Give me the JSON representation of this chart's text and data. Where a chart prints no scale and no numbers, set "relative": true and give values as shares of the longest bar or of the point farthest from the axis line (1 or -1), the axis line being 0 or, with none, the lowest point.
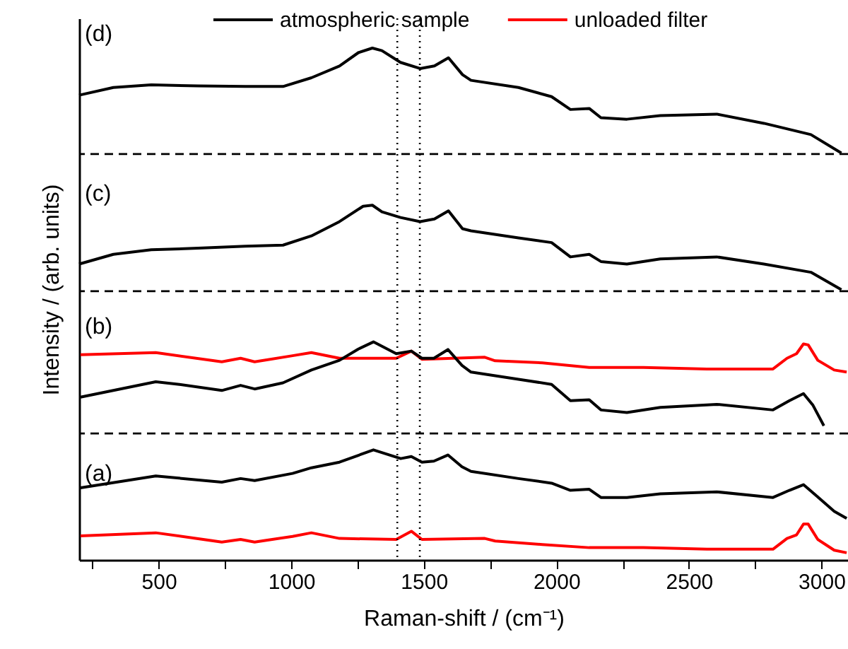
{
  "chart_data": {
    "type": "line",
    "relative": true,
    "xlabel": "Raman-shift / (cm⁻¹)",
    "ylabel": "Intensity / (arb. units)",
    "xlim": [
      200,
      3100
    ],
    "xticks": [
      {
        "value": 250,
        "label": null
      },
      500,
      {
        "value": 750,
        "label": null
      },
      1000,
      {
        "value": 1250,
        "label": null
      },
      1500,
      {
        "value": 1750,
        "label": null
      },
      2000,
      {
        "value": 2250,
        "label": null
      },
      2500,
      {
        "value": 2750,
        "label": null
      },
      3000
    ],
    "legend": "top",
    "grid": false,
    "marker": "none",
    "line_style": "solid",
    "annotations": [
      "(d)",
      "(c)",
      "(b)",
      "(a)"
    ],
    "ref_lines": [
      {
        "axis": "y",
        "value": 0.793,
        "color": "#000000",
        "line_style": "dashed"
      },
      {
        "axis": "y",
        "value": 0.525,
        "color": "#000000",
        "line_style": "dashed"
      },
      {
        "axis": "y",
        "value": 0.247,
        "color": "#000000",
        "line_style": "dashed"
      },
      {
        "axis": "x",
        "value": 1400,
        "color": "#000000",
        "line_style": "dotted"
      },
      {
        "axis": "x",
        "value": 1485,
        "color": "#000000",
        "line_style": "dotted"
      }
    ],
    "series": [
      {
        "name": "atmospheric sample",
        "color": "#000000",
        "x": [
          200,
          329,
          472,
          649,
          827,
          969,
          1076,
          1182,
          1253,
          1306,
          1342,
          1412,
          1486,
          1540,
          1593,
          1646,
          1678,
          1857,
          1982,
          2053,
          2124,
          2168,
          2266,
          2392,
          2605,
          2783,
          2960,
          3075
        ],
        "values": [
          0.908,
          0.923,
          0.928,
          0.926,
          0.925,
          0.925,
          0.942,
          0.965,
          0.991,
          1.0,
          0.995,
          0.972,
          0.96,
          0.965,
          0.981,
          0.948,
          0.937,
          0.923,
          0.905,
          0.88,
          0.882,
          0.864,
          0.861,
          0.868,
          0.871,
          0.853,
          0.831,
          0.795
        ]
      },
      {
        "color": "#000000",
        "x": [
          200,
          329,
          472,
          649,
          827,
          969,
          1076,
          1182,
          1271,
          1306,
          1342,
          1412,
          1486,
          1540,
          1593,
          1646,
          1678,
          1857,
          1982,
          2053,
          2124,
          2168,
          2266,
          2392,
          2605,
          2783,
          2960,
          3075
        ],
        "values": [
          0.578,
          0.597,
          0.606,
          0.609,
          0.613,
          0.615,
          0.633,
          0.661,
          0.691,
          0.693,
          0.68,
          0.669,
          0.661,
          0.666,
          0.682,
          0.647,
          0.643,
          0.629,
          0.62,
          0.592,
          0.597,
          0.583,
          0.578,
          0.588,
          0.592,
          0.578,
          0.562,
          0.528
        ]
      },
      {
        "name": "unloaded filter",
        "color": "#ff0000",
        "x": [
          205,
          489,
          738,
          809,
          862,
          1005,
          1076,
          1182,
          1396,
          1453,
          1493,
          1730,
          1769,
          1947,
          2124,
          2328,
          2568,
          2817,
          2870,
          2906,
          2932,
          2950,
          2986,
          3048,
          3095
        ],
        "values": [
          0.401,
          0.405,
          0.387,
          0.394,
          0.387,
          0.399,
          0.405,
          0.394,
          0.394,
          0.408,
          0.392,
          0.396,
          0.389,
          0.385,
          0.376,
          0.376,
          0.373,
          0.373,
          0.394,
          0.403,
          0.422,
          0.42,
          0.39,
          0.371,
          0.367
        ]
      },
      {
        "color": "#000000",
        "x": [
          205,
          489,
          578,
          738,
          809,
          862,
          969,
          1076,
          1182,
          1253,
          1310,
          1396,
          1453,
          1493,
          1538,
          1591,
          1644,
          1678,
          1857,
          1982,
          2053,
          2124,
          2168,
          2266,
          2392,
          2605,
          2817,
          2879,
          2932,
          2968,
          3009
        ],
        "values": [
          0.318,
          0.348,
          0.343,
          0.331,
          0.341,
          0.334,
          0.346,
          0.371,
          0.39,
          0.412,
          0.426,
          0.403,
          0.408,
          0.394,
          0.394,
          0.411,
          0.38,
          0.367,
          0.353,
          0.343,
          0.311,
          0.313,
          0.293,
          0.288,
          0.298,
          0.304,
          0.293,
          0.311,
          0.325,
          0.302,
          0.262
        ]
      },
      {
        "color": "#000000",
        "x": [
          205,
          489,
          738,
          809,
          862,
          1005,
          1076,
          1182,
          1310,
          1413,
          1453,
          1493,
          1538,
          1591,
          1644,
          1678,
          1857,
          1982,
          2053,
          2124,
          2168,
          2266,
          2392,
          2605,
          2817,
          2879,
          2932,
          2977,
          3048,
          3095
        ],
        "values": [
          0.141,
          0.164,
          0.152,
          0.159,
          0.155,
          0.169,
          0.18,
          0.191,
          0.215,
          0.198,
          0.202,
          0.191,
          0.193,
          0.205,
          0.182,
          0.173,
          0.159,
          0.15,
          0.136,
          0.138,
          0.122,
          0.122,
          0.129,
          0.133,
          0.122,
          0.136,
          0.147,
          0.127,
          0.095,
          0.081
        ]
      },
      {
        "color": "#ff0000",
        "x": [
          205,
          489,
          738,
          809,
          862,
          1005,
          1076,
          1182,
          1396,
          1453,
          1493,
          1730,
          1769,
          1947,
          2124,
          2328,
          2568,
          2817,
          2870,
          2906,
          2932,
          2950,
          2986,
          3048,
          3095
        ],
        "values": [
          0.047,
          0.053,
          0.035,
          0.04,
          0.035,
          0.046,
          0.053,
          0.042,
          0.04,
          0.056,
          0.04,
          0.042,
          0.037,
          0.03,
          0.024,
          0.024,
          0.021,
          0.021,
          0.042,
          0.049,
          0.07,
          0.07,
          0.04,
          0.019,
          0.014
        ]
      }
    ]
  }
}
